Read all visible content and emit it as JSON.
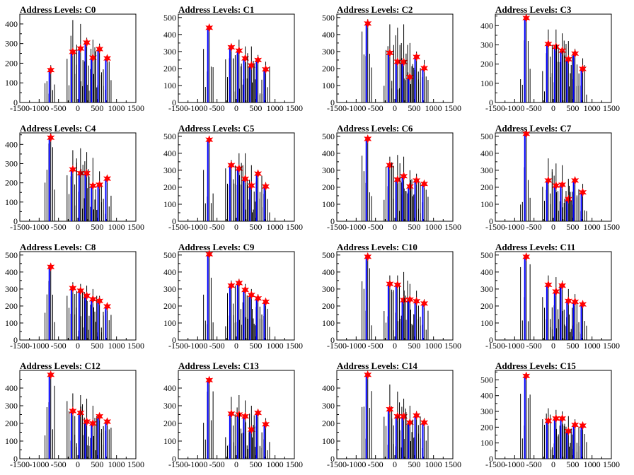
{
  "chart_data": [
    {
      "type": "bar",
      "title": "Address Levels: C0",
      "xlim": [
        -1500,
        1500
      ],
      "ylim": [
        0,
        450
      ],
      "xticks": [
        "-1500",
        "-1000",
        "-500",
        "0",
        "500",
        "1000",
        "1500"
      ],
      "yticks": [
        "0",
        "100",
        "200",
        "300",
        "400"
      ],
      "ytick_values": [
        0,
        100,
        200,
        300,
        400
      ],
      "peaks": [
        {
          "x": -700,
          "y": 165,
          "h": 190
        },
        {
          "x": -130,
          "y": 258,
          "h": 420
        },
        {
          "x": 70,
          "y": 275,
          "h": 400
        },
        {
          "x": 230,
          "y": 305,
          "h": 330
        },
        {
          "x": 390,
          "y": 228,
          "h": 320
        },
        {
          "x": 560,
          "y": 272,
          "h": 300
        },
        {
          "x": 760,
          "y": 225,
          "h": 235
        }
      ]
    },
    {
      "type": "bar",
      "title": "Address Levels: C1",
      "xlim": [
        -1500,
        1500
      ],
      "ylim": [
        0,
        520
      ],
      "xticks": [
        "-1500",
        "-1000",
        "-500",
        "0",
        "500",
        "1000",
        "1500"
      ],
      "yticks": [
        "0",
        "100",
        "200",
        "300",
        "400",
        "500"
      ],
      "ytick_values": [
        0,
        100,
        200,
        300,
        400,
        500
      ],
      "peaks": [
        {
          "x": -700,
          "y": 440,
          "h": 460
        },
        {
          "x": -130,
          "y": 325,
          "h": 340
        },
        {
          "x": 70,
          "y": 305,
          "h": 370
        },
        {
          "x": 230,
          "y": 260,
          "h": 330
        },
        {
          "x": 390,
          "y": 218,
          "h": 330
        },
        {
          "x": 560,
          "y": 250,
          "h": 280
        },
        {
          "x": 760,
          "y": 195,
          "h": 240
        }
      ]
    },
    {
      "type": "bar",
      "title": "Address Levels: C2",
      "xlim": [
        -1500,
        1500
      ],
      "ylim": [
        0,
        520
      ],
      "xticks": [
        "-1500",
        "-1000",
        "-500",
        "0",
        "500",
        "1000",
        "1500"
      ],
      "yticks": [
        "0",
        "100",
        "200",
        "300",
        "400",
        "500"
      ],
      "ytick_values": [
        0,
        100,
        200,
        300,
        400,
        500
      ],
      "peaks": [
        {
          "x": -700,
          "y": 465,
          "h": 490
        },
        {
          "x": -130,
          "y": 292,
          "h": 460
        },
        {
          "x": 70,
          "y": 240,
          "h": 440
        },
        {
          "x": 230,
          "y": 238,
          "h": 460
        },
        {
          "x": 390,
          "y": 150,
          "h": 350
        },
        {
          "x": 560,
          "y": 268,
          "h": 300
        },
        {
          "x": 760,
          "y": 202,
          "h": 250
        }
      ]
    },
    {
      "type": "bar",
      "title": "Address Levels: C3",
      "xlim": [
        -1500,
        1500
      ],
      "ylim": [
        0,
        460
      ],
      "xticks": [
        "-1500",
        "-1000",
        "-500",
        "0",
        "500",
        "1000",
        "1500"
      ],
      "yticks": [
        "0",
        "100",
        "200",
        "300",
        "400"
      ],
      "ytick_values": [
        0,
        100,
        200,
        300,
        400
      ],
      "peaks": [
        {
          "x": -700,
          "y": 440,
          "h": 450
        },
        {
          "x": -130,
          "y": 305,
          "h": 380
        },
        {
          "x": 70,
          "y": 290,
          "h": 380
        },
        {
          "x": 230,
          "y": 270,
          "h": 360
        },
        {
          "x": 390,
          "y": 225,
          "h": 320
        },
        {
          "x": 560,
          "y": 255,
          "h": 280
        },
        {
          "x": 760,
          "y": 175,
          "h": 230
        }
      ]
    },
    {
      "type": "bar",
      "title": "Address Levels: C4",
      "xlim": [
        -1500,
        1500
      ],
      "ylim": [
        0,
        460
      ],
      "xticks": [
        "-1500",
        "-1000",
        "-500",
        "0",
        "500",
        "1000",
        "1500"
      ],
      "yticks": [
        "0",
        "100",
        "200",
        "300",
        "400"
      ],
      "ytick_values": [
        0,
        100,
        200,
        300,
        400
      ],
      "peaks": [
        {
          "x": -700,
          "y": 435,
          "h": 460
        },
        {
          "x": -130,
          "y": 270,
          "h": 370
        },
        {
          "x": 70,
          "y": 250,
          "h": 380
        },
        {
          "x": 230,
          "y": 250,
          "h": 360
        },
        {
          "x": 390,
          "y": 185,
          "h": 330
        },
        {
          "x": 560,
          "y": 190,
          "h": 260
        },
        {
          "x": 760,
          "y": 222,
          "h": 230
        }
      ]
    },
    {
      "type": "bar",
      "title": "Address Levels: C5",
      "xlim": [
        -1500,
        1500
      ],
      "ylim": [
        0,
        520
      ],
      "xticks": [
        "-1500",
        "-1000",
        "-500",
        "0",
        "500",
        "1000",
        "1500"
      ],
      "yticks": [
        "0",
        "100",
        "200",
        "300",
        "400",
        "500"
      ],
      "ytick_values": [
        0,
        100,
        200,
        300,
        400,
        500
      ],
      "peaks": [
        {
          "x": -700,
          "y": 480,
          "h": 500
        },
        {
          "x": -130,
          "y": 330,
          "h": 360
        },
        {
          "x": 70,
          "y": 310,
          "h": 400
        },
        {
          "x": 230,
          "y": 250,
          "h": 400
        },
        {
          "x": 390,
          "y": 210,
          "h": 330
        },
        {
          "x": 560,
          "y": 280,
          "h": 300
        },
        {
          "x": 760,
          "y": 205,
          "h": 230
        }
      ]
    },
    {
      "type": "bar",
      "title": "Address Levels: C6",
      "xlim": [
        -1500,
        1500
      ],
      "ylim": [
        0,
        520
      ],
      "xticks": [
        "-1500",
        "-1000",
        "-500",
        "0",
        "500",
        "1000",
        "1500"
      ],
      "yticks": [
        "0",
        "100",
        "200",
        "300",
        "400",
        "500"
      ],
      "ytick_values": [
        0,
        100,
        200,
        300,
        400,
        500
      ],
      "peaks": [
        {
          "x": -700,
          "y": 485,
          "h": 500
        },
        {
          "x": -130,
          "y": 330,
          "h": 380
        },
        {
          "x": 70,
          "y": 245,
          "h": 390
        },
        {
          "x": 230,
          "y": 265,
          "h": 380
        },
        {
          "x": 390,
          "y": 205,
          "h": 300
        },
        {
          "x": 560,
          "y": 240,
          "h": 280
        },
        {
          "x": 760,
          "y": 220,
          "h": 230
        }
      ]
    },
    {
      "type": "bar",
      "title": "Address Levels: C7",
      "xlim": [
        -1500,
        1500
      ],
      "ylim": [
        0,
        520
      ],
      "xticks": [
        "-1500",
        "-1000",
        "-500",
        "0",
        "500",
        "1000",
        "1500"
      ],
      "yticks": [
        "0",
        "100",
        "200",
        "300",
        "400",
        "500"
      ],
      "ytick_values": [
        0,
        100,
        200,
        300,
        400,
        500
      ],
      "peaks": [
        {
          "x": -700,
          "y": 515,
          "h": 520
        },
        {
          "x": -130,
          "y": 240,
          "h": 370
        },
        {
          "x": 70,
          "y": 210,
          "h": 340
        },
        {
          "x": 230,
          "y": 215,
          "h": 330
        },
        {
          "x": 390,
          "y": 130,
          "h": 250
        },
        {
          "x": 560,
          "y": 240,
          "h": 260
        },
        {
          "x": 760,
          "y": 170,
          "h": 220
        }
      ]
    },
    {
      "type": "bar",
      "title": "Address Levels: C8",
      "xlim": [
        -1500,
        1500
      ],
      "ylim": [
        0,
        520
      ],
      "xticks": [
        "-1500",
        "-1000",
        "-500",
        "0",
        "500",
        "1000",
        "1500"
      ],
      "yticks": [
        "0",
        "100",
        "200",
        "300",
        "400",
        "500"
      ],
      "ytick_values": [
        0,
        100,
        200,
        300,
        400,
        500
      ],
      "peaks": [
        {
          "x": -700,
          "y": 430,
          "h": 450
        },
        {
          "x": -130,
          "y": 305,
          "h": 340
        },
        {
          "x": 70,
          "y": 290,
          "h": 330
        },
        {
          "x": 230,
          "y": 260,
          "h": 320
        },
        {
          "x": 390,
          "y": 240,
          "h": 300
        },
        {
          "x": 560,
          "y": 230,
          "h": 260
        },
        {
          "x": 760,
          "y": 198,
          "h": 220
        }
      ]
    },
    {
      "type": "bar",
      "title": "Address Levels: C9",
      "xlim": [
        -1500,
        1500
      ],
      "ylim": [
        0,
        520
      ],
      "xticks": [
        "-1500",
        "-1000",
        "-500",
        "0",
        "500",
        "1000",
        "1500"
      ],
      "yticks": [
        "0",
        "100",
        "200",
        "300",
        "400",
        "500"
      ],
      "ytick_values": [
        0,
        100,
        200,
        300,
        400,
        500
      ],
      "peaks": [
        {
          "x": -700,
          "y": 505,
          "h": 510
        },
        {
          "x": -130,
          "y": 320,
          "h": 350
        },
        {
          "x": 70,
          "y": 335,
          "h": 360
        },
        {
          "x": 230,
          "y": 295,
          "h": 330
        },
        {
          "x": 390,
          "y": 265,
          "h": 300
        },
        {
          "x": 560,
          "y": 245,
          "h": 270
        },
        {
          "x": 760,
          "y": 225,
          "h": 240
        }
      ]
    },
    {
      "type": "bar",
      "title": "Address Levels: C10",
      "xlim": [
        -1500,
        1500
      ],
      "ylim": [
        0,
        520
      ],
      "xticks": [
        "-1500",
        "-1000",
        "-500",
        "0",
        "500",
        "1000",
        "1500"
      ],
      "yticks": [
        "0",
        "100",
        "200",
        "300",
        "400",
        "500"
      ],
      "ytick_values": [
        0,
        100,
        200,
        300,
        400,
        500
      ],
      "peaks": [
        {
          "x": -700,
          "y": 490,
          "h": 500
        },
        {
          "x": -130,
          "y": 330,
          "h": 380
        },
        {
          "x": 70,
          "y": 325,
          "h": 380
        },
        {
          "x": 230,
          "y": 235,
          "h": 400
        },
        {
          "x": 390,
          "y": 238,
          "h": 330
        },
        {
          "x": 560,
          "y": 228,
          "h": 290
        },
        {
          "x": 760,
          "y": 215,
          "h": 240
        }
      ]
    },
    {
      "type": "bar",
      "title": "Address Levels: C11",
      "xlim": [
        -1500,
        1500
      ],
      "ylim": [
        0,
        520
      ],
      "xticks": [
        "-1500",
        "-1000",
        "-500",
        "0",
        "500",
        "1000",
        "1500"
      ],
      "yticks": [
        "0",
        "100",
        "200",
        "300",
        "400",
        "500"
      ],
      "ytick_values": [
        0,
        100,
        200,
        300,
        400,
        500
      ],
      "peaks": [
        {
          "x": -700,
          "y": 490,
          "h": 500
        },
        {
          "x": -130,
          "y": 325,
          "h": 380
        },
        {
          "x": 70,
          "y": 285,
          "h": 370
        },
        {
          "x": 230,
          "y": 320,
          "h": 350
        },
        {
          "x": 390,
          "y": 230,
          "h": 300
        },
        {
          "x": 560,
          "y": 225,
          "h": 270
        },
        {
          "x": 760,
          "y": 210,
          "h": 230
        }
      ]
    },
    {
      "type": "bar",
      "title": "Address Levels: C12",
      "xlim": [
        -1500,
        1500
      ],
      "ylim": [
        0,
        500
      ],
      "xticks": [
        "-1500",
        "-1000",
        "-500",
        "0",
        "500",
        "1000",
        "1500"
      ],
      "yticks": [
        "0",
        "100",
        "200",
        "300",
        "400"
      ],
      "ytick_values": [
        0,
        100,
        200,
        300,
        400
      ],
      "peaks": [
        {
          "x": -700,
          "y": 475,
          "h": 480
        },
        {
          "x": -130,
          "y": 270,
          "h": 370
        },
        {
          "x": 70,
          "y": 260,
          "h": 360
        },
        {
          "x": 230,
          "y": 210,
          "h": 340
        },
        {
          "x": 390,
          "y": 200,
          "h": 300
        },
        {
          "x": 560,
          "y": 240,
          "h": 260
        },
        {
          "x": 760,
          "y": 210,
          "h": 230
        }
      ]
    },
    {
      "type": "bar",
      "title": "Address Levels: C13",
      "xlim": [
        -1500,
        1500
      ],
      "ylim": [
        0,
        500
      ],
      "xticks": [
        "-1500",
        "-1000",
        "-500",
        "0",
        "500",
        "1000",
        "1500"
      ],
      "yticks": [
        "0",
        "100",
        "200",
        "300",
        "400"
      ],
      "ytick_values": [
        0,
        100,
        200,
        300,
        400
      ],
      "peaks": [
        {
          "x": -700,
          "y": 445,
          "h": 460
        },
        {
          "x": -130,
          "y": 255,
          "h": 350
        },
        {
          "x": 70,
          "y": 250,
          "h": 360
        },
        {
          "x": 230,
          "y": 240,
          "h": 330
        },
        {
          "x": 390,
          "y": 165,
          "h": 300
        },
        {
          "x": 560,
          "y": 260,
          "h": 280
        },
        {
          "x": 760,
          "y": 195,
          "h": 230
        }
      ]
    },
    {
      "type": "bar",
      "title": "Address Levels: C14",
      "xlim": [
        -1500,
        1500
      ],
      "ylim": [
        0,
        500
      ],
      "xticks": [
        "-1500",
        "-1000",
        "-500",
        "0",
        "500",
        "1000",
        "1500"
      ],
      "yticks": [
        "0",
        "100",
        "200",
        "300",
        "400"
      ],
      "ytick_values": [
        0,
        100,
        200,
        300,
        400
      ],
      "peaks": [
        {
          "x": -700,
          "y": 475,
          "h": 480
        },
        {
          "x": -130,
          "y": 280,
          "h": 420
        },
        {
          "x": 70,
          "y": 240,
          "h": 380
        },
        {
          "x": 230,
          "y": 240,
          "h": 340
        },
        {
          "x": 390,
          "y": 205,
          "h": 300
        },
        {
          "x": 560,
          "y": 245,
          "h": 270
        },
        {
          "x": 760,
          "y": 205,
          "h": 230
        }
      ]
    },
    {
      "type": "bar",
      "title": "Address Levels: C15",
      "xlim": [
        -1500,
        1500
      ],
      "ylim": [
        0,
        560
      ],
      "xticks": [
        "-1500",
        "-1000",
        "-500",
        "0",
        "500",
        "1000",
        "1500"
      ],
      "yticks": [
        "0",
        "100",
        "200",
        "300",
        "400",
        "500"
      ],
      "ytick_values": [
        0,
        100,
        200,
        300,
        400,
        500
      ],
      "peaks": [
        {
          "x": -700,
          "y": 525,
          "h": 530
        },
        {
          "x": -130,
          "y": 240,
          "h": 320
        },
        {
          "x": 70,
          "y": 255,
          "h": 310
        },
        {
          "x": 230,
          "y": 255,
          "h": 300
        },
        {
          "x": 390,
          "y": 175,
          "h": 270
        },
        {
          "x": 560,
          "y": 215,
          "h": 250
        },
        {
          "x": 760,
          "y": 210,
          "h": 230
        }
      ]
    }
  ],
  "colors": {
    "histogram": "#000000",
    "fit": "#0000ff",
    "marker": "#ff0000",
    "axis": "#000000"
  }
}
